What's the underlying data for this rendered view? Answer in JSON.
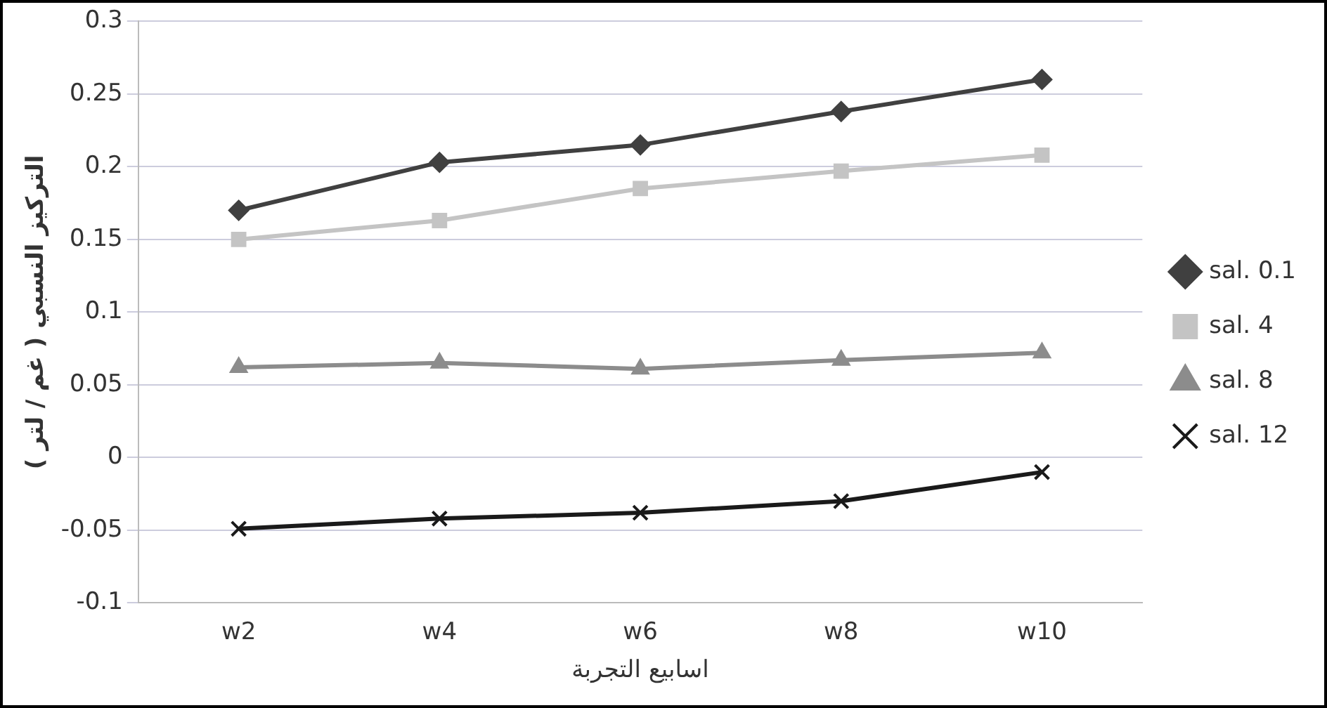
{
  "chart_data": {
    "type": "line",
    "xlabel": "اسابيع التجربة",
    "ylabel": "التركيز النسبي ( غم / لتر )",
    "categories": [
      "w2",
      "w4",
      "w6",
      "w8",
      "w10"
    ],
    "series": [
      {
        "name": "sal. 0.1",
        "color": "#404040",
        "marker": "diamond",
        "values": [
          0.17,
          0.203,
          0.215,
          0.238,
          0.26
        ]
      },
      {
        "name": "sal. 4",
        "color": "#c4c4c4",
        "marker": "square",
        "values": [
          0.15,
          0.163,
          0.185,
          0.197,
          0.208
        ]
      },
      {
        "name": "sal. 8",
        "color": "#8c8c8c",
        "marker": "triangle",
        "values": [
          0.062,
          0.065,
          0.061,
          0.067,
          0.072
        ]
      },
      {
        "name": "sal. 12",
        "color": "#1a1a1a",
        "marker": "cross",
        "values": [
          -0.049,
          -0.042,
          -0.038,
          -0.03,
          -0.01
        ]
      }
    ],
    "ylim": [
      -0.1,
      0.3
    ],
    "yticks": [
      -0.1,
      -0.05,
      0,
      0.05,
      0.1,
      0.15,
      0.2,
      0.25,
      0.3
    ],
    "grid": "y",
    "legend": "right",
    "line_style": "solid"
  }
}
